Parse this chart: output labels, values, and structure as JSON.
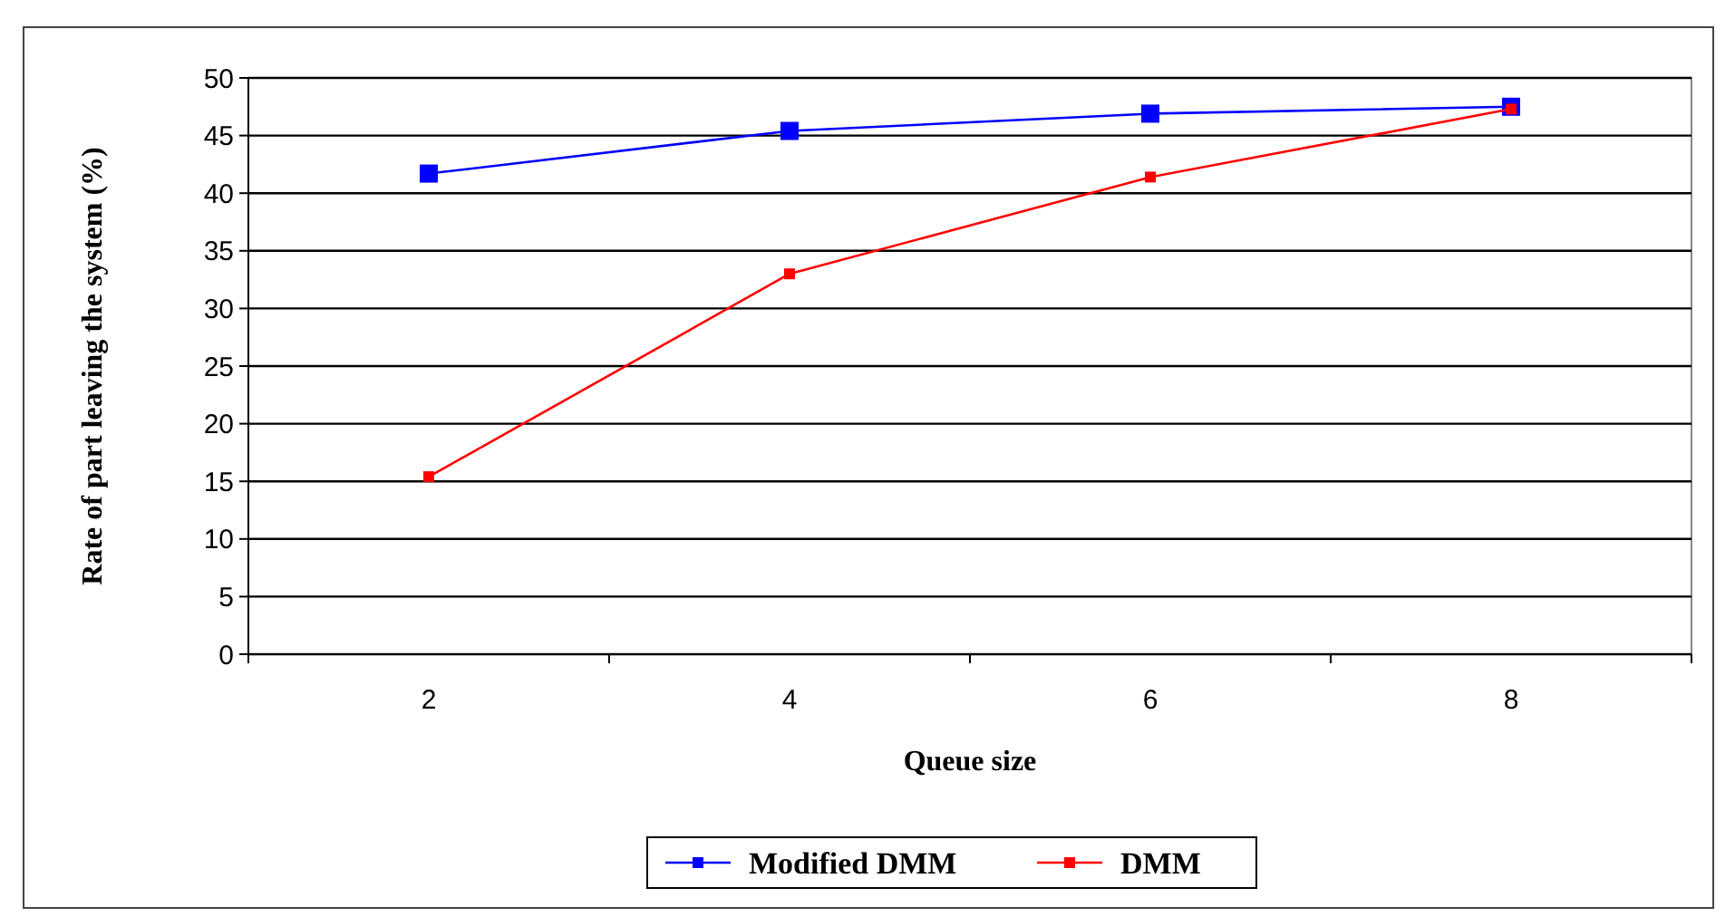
{
  "chart_data": {
    "type": "line",
    "xlabel": "Queue size",
    "ylabel": "Rate of part leaving the system (%)",
    "categories": [
      "2",
      "4",
      "6",
      "8"
    ],
    "series": [
      {
        "name": "Modified DMM",
        "color": "#0000ff",
        "values": [
          41.7,
          45.4,
          46.9,
          47.5
        ]
      },
      {
        "name": "DMM",
        "color": "#ff0000",
        "values": [
          15.4,
          33,
          41.4,
          47.3
        ]
      }
    ],
    "ylim": [
      0,
      50
    ],
    "yticks": [
      0,
      5,
      10,
      15,
      20,
      25,
      30,
      35,
      40,
      45,
      50
    ],
    "grid": "y",
    "legend": "bottom",
    "marker": "square",
    "line_style": "solid"
  }
}
